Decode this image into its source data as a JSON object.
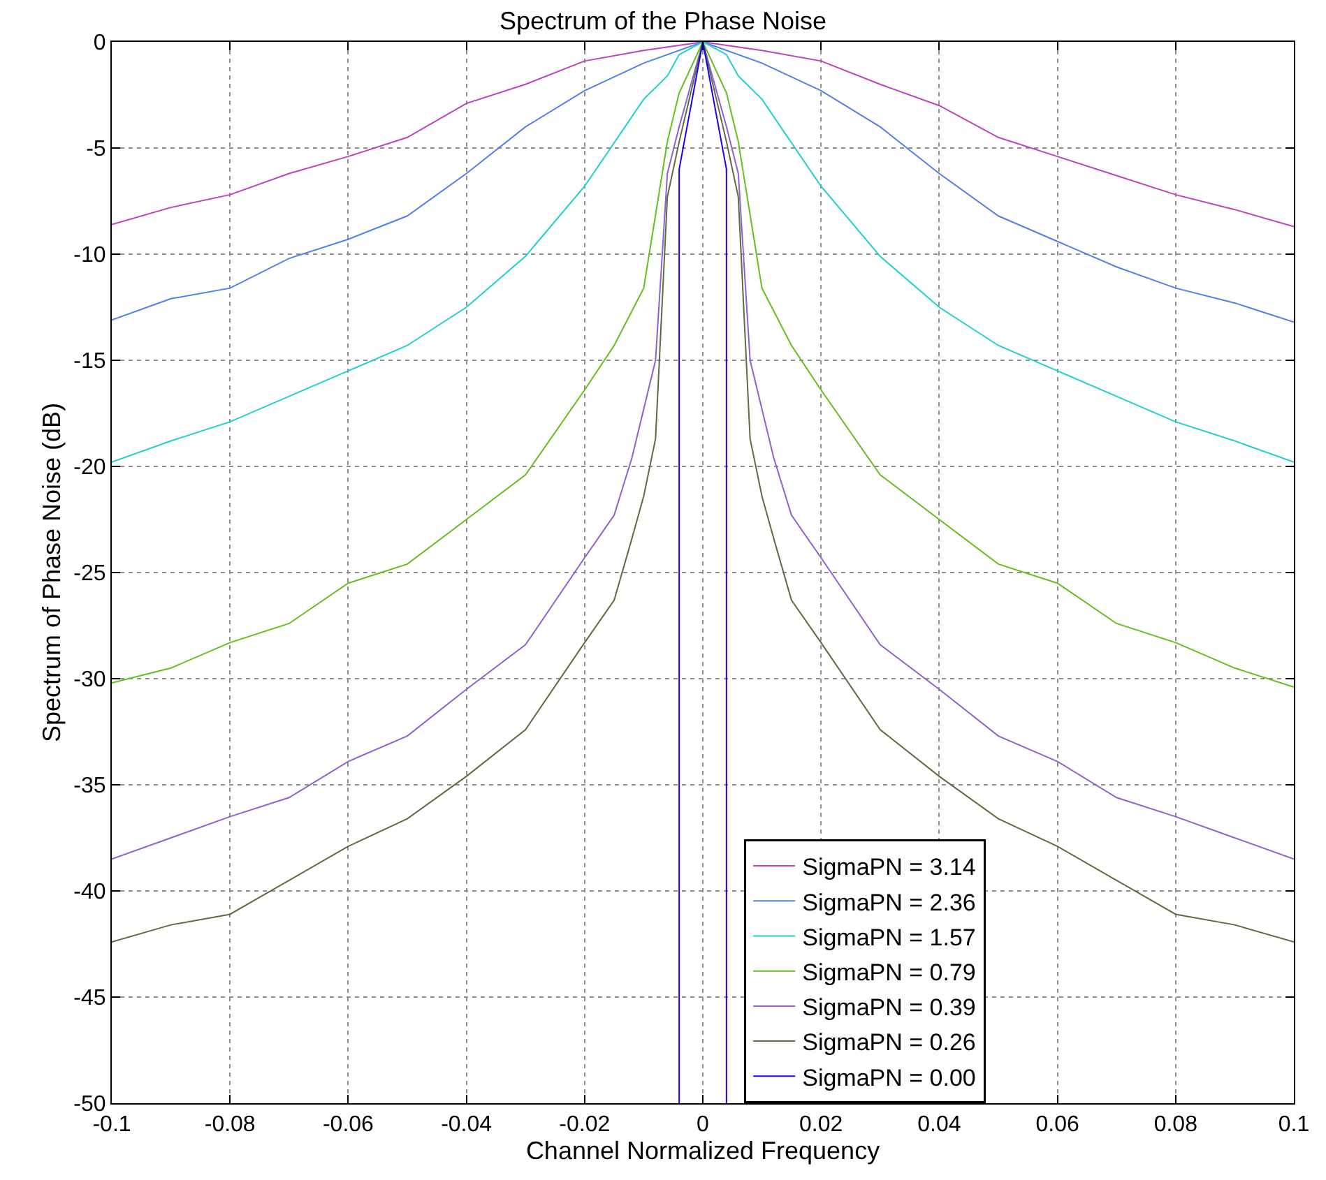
{
  "chart_data": {
    "type": "line",
    "title": "Spectrum of the Phase Noise",
    "xlabel": "Channel Normalized Frequency",
    "ylabel": "Spectrum of Phase Noise (dB)",
    "xlim": [
      -0.1,
      0.1
    ],
    "xticks": [
      -0.1,
      -0.08,
      -0.06,
      -0.04,
      -0.02,
      0,
      0.02,
      0.04,
      0.06,
      0.08,
      0.1
    ],
    "ylim": [
      -50,
      0
    ],
    "yticks": [
      -50,
      -45,
      -40,
      -35,
      -30,
      -25,
      -20,
      -15,
      -10,
      -5,
      0
    ],
    "grid": true,
    "legend": "bottom",
    "marker": "none",
    "line_style": "solid",
    "series": [
      {
        "name": "SigmaPN = 3.14",
        "color": "#c040c0",
        "x": [
          -0.1,
          -0.09,
          -0.08,
          -0.07,
          -0.06,
          -0.05,
          -0.04,
          -0.03,
          -0.02,
          -0.01,
          0,
          0.01,
          0.02,
          0.03,
          0.04,
          0.05,
          0.06,
          0.07,
          0.08,
          0.09,
          0.1
        ],
        "values": [
          -8.6,
          -7.8,
          -7.2,
          -6.2,
          -5.4,
          -4.5,
          -2.9,
          -2.0,
          -0.9,
          -0.4,
          0,
          -0.4,
          -0.9,
          -2.0,
          -3.0,
          -4.5,
          -5.4,
          -6.3,
          -7.2,
          -7.9,
          -8.7
        ]
      },
      {
        "name": "SigmaPN = 2.36",
        "color": "#5080f0",
        "x": [
          -0.1,
          -0.09,
          -0.08,
          -0.07,
          -0.06,
          -0.05,
          -0.04,
          -0.03,
          -0.02,
          -0.01,
          0,
          0.01,
          0.02,
          0.03,
          0.04,
          0.05,
          0.06,
          0.07,
          0.08,
          0.09,
          0.1
        ],
        "values": [
          -13.1,
          -12.1,
          -11.6,
          -10.2,
          -9.3,
          -8.2,
          -6.2,
          -4.0,
          -2.3,
          -1.0,
          0,
          -1.0,
          -2.3,
          -4.0,
          -6.2,
          -8.2,
          -9.4,
          -10.6,
          -11.6,
          -12.3,
          -13.2
        ]
      },
      {
        "name": "SigmaPN = 1.57",
        "color": "#20d0d0",
        "x": [
          -0.1,
          -0.09,
          -0.08,
          -0.07,
          -0.06,
          -0.05,
          -0.04,
          -0.03,
          -0.02,
          -0.01,
          -0.006,
          -0.004,
          0,
          0.004,
          0.006,
          0.01,
          0.02,
          0.03,
          0.04,
          0.05,
          0.06,
          0.07,
          0.08,
          0.09,
          0.1
        ],
        "values": [
          -19.8,
          -18.8,
          -17.9,
          -16.7,
          -15.5,
          -14.3,
          -12.5,
          -10.1,
          -6.8,
          -2.7,
          -1.6,
          -0.6,
          0,
          -0.6,
          -1.6,
          -2.7,
          -6.8,
          -10.1,
          -12.5,
          -14.3,
          -15.5,
          -16.7,
          -17.9,
          -18.8,
          -19.8
        ]
      },
      {
        "name": "SigmaPN = 0.79",
        "color": "#60c020",
        "x": [
          -0.1,
          -0.09,
          -0.08,
          -0.07,
          -0.06,
          -0.05,
          -0.04,
          -0.03,
          -0.02,
          -0.015,
          -0.01,
          -0.006,
          -0.004,
          0,
          0.004,
          0.006,
          0.01,
          0.015,
          0.02,
          0.03,
          0.04,
          0.05,
          0.06,
          0.07,
          0.08,
          0.09,
          0.1
        ],
        "values": [
          -30.2,
          -29.5,
          -28.3,
          -27.4,
          -25.5,
          -24.6,
          -22.5,
          -20.4,
          -16.4,
          -14.3,
          -11.6,
          -4.7,
          -2.4,
          0,
          -2.4,
          -4.7,
          -11.6,
          -14.3,
          -16.4,
          -20.4,
          -22.5,
          -24.6,
          -25.5,
          -27.4,
          -28.3,
          -29.5,
          -30.4
        ]
      },
      {
        "name": "SigmaPN = 0.39",
        "color": "#9060d0",
        "x": [
          -0.1,
          -0.09,
          -0.08,
          -0.07,
          -0.06,
          -0.05,
          -0.04,
          -0.03,
          -0.02,
          -0.015,
          -0.012,
          -0.008,
          -0.006,
          -0.004,
          0,
          0.004,
          0.006,
          0.008,
          0.012,
          0.015,
          0.02,
          0.03,
          0.04,
          0.05,
          0.06,
          0.07,
          0.08,
          0.09,
          0.1
        ],
        "values": [
          -38.5,
          -37.5,
          -36.5,
          -35.6,
          -33.9,
          -32.7,
          -30.5,
          -28.4,
          -24.3,
          -22.3,
          -19.6,
          -15.0,
          -6.2,
          -4.0,
          0,
          -4.0,
          -6.2,
          -15.0,
          -19.6,
          -22.3,
          -24.3,
          -28.4,
          -30.5,
          -32.7,
          -33.9,
          -35.6,
          -36.5,
          -37.5,
          -38.5
        ]
      },
      {
        "name": "SigmaPN = 0.26",
        "color": "#5a6e40",
        "x": [
          -0.1,
          -0.09,
          -0.08,
          -0.07,
          -0.06,
          -0.05,
          -0.04,
          -0.03,
          -0.02,
          -0.015,
          -0.012,
          -0.01,
          -0.008,
          -0.006,
          -0.004,
          0,
          0.004,
          0.006,
          0.008,
          0.01,
          0.012,
          0.015,
          0.02,
          0.03,
          0.04,
          0.05,
          0.06,
          0.07,
          0.08,
          0.09,
          0.1
        ],
        "values": [
          -42.4,
          -41.6,
          -41.1,
          -39.5,
          -37.9,
          -36.6,
          -34.6,
          -32.4,
          -28.3,
          -26.3,
          -23.4,
          -21.4,
          -18.7,
          -7.3,
          -4.7,
          0,
          -4.7,
          -7.3,
          -18.7,
          -21.4,
          -23.4,
          -26.3,
          -28.3,
          -32.4,
          -34.6,
          -36.6,
          -37.9,
          -39.5,
          -41.1,
          -41.6,
          -42.4
        ]
      },
      {
        "name": "SigmaPN = 0.00",
        "color": "#2000f0",
        "x": [
          -0.004,
          -0.004,
          0,
          0.004,
          0.004
        ],
        "values": [
          -50,
          -6,
          0,
          -6,
          -50
        ]
      }
    ]
  }
}
